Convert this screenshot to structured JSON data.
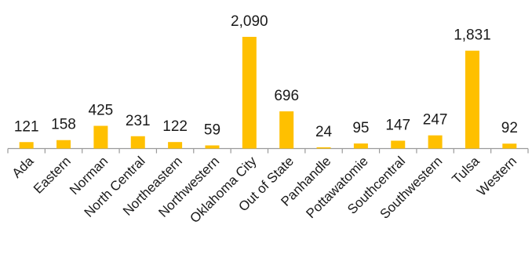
{
  "chart_data": {
    "type": "bar",
    "title": "",
    "xlabel": "",
    "ylabel": "",
    "categories": [
      "Ada",
      "Eastern",
      "Norman",
      "North Central",
      "Northeastern",
      "Northwestern",
      "Oklahoma City",
      "Out of State",
      "Panhandle",
      "Pottawatomie",
      "Southcentral",
      "Southwestern",
      "Tulsa",
      "Western"
    ],
    "values": [
      121,
      158,
      425,
      231,
      122,
      59,
      2090,
      696,
      24,
      95,
      147,
      247,
      1831,
      92
    ],
    "value_labels": [
      "121",
      "158",
      "425",
      "231",
      "122",
      "59",
      "2,090",
      "696",
      "24",
      "95",
      "147",
      "247",
      "1,831",
      "92"
    ],
    "ylim": [
      0,
      2090
    ],
    "grid": false,
    "legend": "none",
    "colors": {
      "bar": "#FFC000",
      "axis": "#9a9a9a",
      "text": "#1a1a1a"
    }
  }
}
